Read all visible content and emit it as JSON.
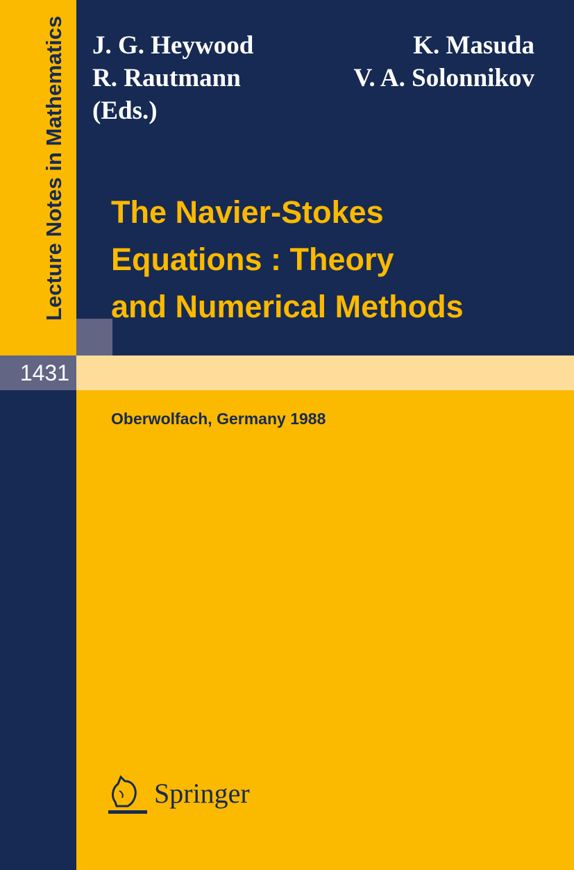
{
  "series": {
    "name": "Lecture Notes in Mathematics",
    "volume": "1431"
  },
  "editors": {
    "left": [
      "J. G. Heywood",
      "R. Rautmann",
      "(Eds.)"
    ],
    "right": [
      "K. Masuda",
      "V. A. Solonnikov"
    ]
  },
  "title_lines": [
    "The Navier-Stokes",
    "Equations : Theory",
    "and Numerical Methods"
  ],
  "subtitle": "Oberwolfach, Germany 1988",
  "publisher": {
    "name": "Springer",
    "logo_icon": "springer-horse-icon"
  },
  "colors": {
    "navy": "#172a53",
    "yellow": "#fbb900",
    "light_yellow": "#fedd9a",
    "gray": "#626583"
  }
}
